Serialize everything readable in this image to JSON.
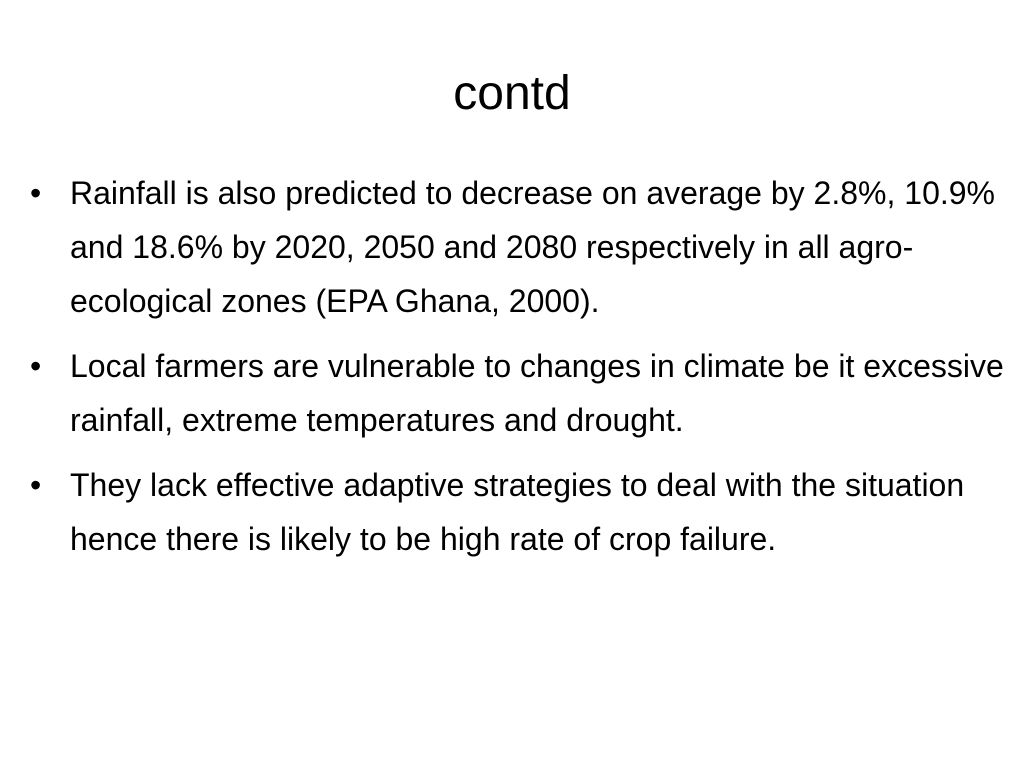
{
  "slide": {
    "title": "contd",
    "bullet_symbol": "•",
    "bullets": [
      "Rainfall is also predicted to decrease on average by 2.8%, 10.9% and 18.6% by 2020, 2050 and 2080 respectively in all agro-ecological zones (EPA Ghana, 2000).",
      "Local farmers are vulnerable to changes in climate be it excessive rainfall, extreme temperatures and drought.",
      "They lack effective adaptive strategies to deal with the situation hence there is likely to be high rate of crop failure."
    ]
  }
}
